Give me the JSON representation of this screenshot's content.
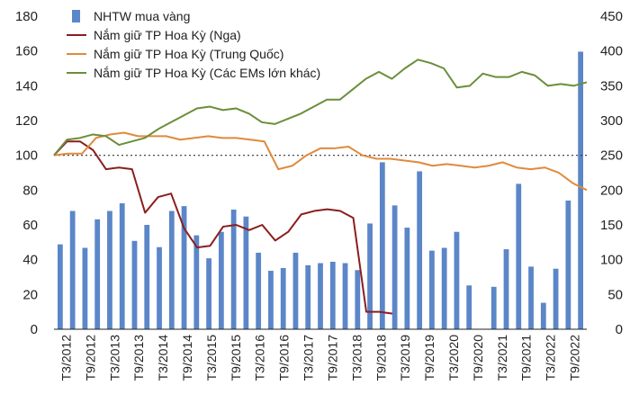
{
  "chart_data": {
    "type": "bar+line",
    "y_left": {
      "min": 0,
      "max": 180,
      "step": 20,
      "ticks": [
        "0",
        "20",
        "40",
        "60",
        "80",
        "100",
        "120",
        "140",
        "160",
        "180"
      ]
    },
    "y_right": {
      "min": 0,
      "max": 450,
      "step": 50,
      "ticks": [
        "0",
        "50",
        "100",
        "150",
        "200",
        "250",
        "300",
        "350",
        "400",
        "450"
      ]
    },
    "x_tick_labels": [
      "T3/2012",
      "T9/2012",
      "T3/2013",
      "T9/2013",
      "T3/2014",
      "T9/2014",
      "T3/2015",
      "T9/2015",
      "T3/2016",
      "T9/2016",
      "T3/2017",
      "T9/2017",
      "T3/2018",
      "T9/2018",
      "T3/2019",
      "T9/2019",
      "T3/2020",
      "T9/2020",
      "T3/2021",
      "T9/2021",
      "T3/2022",
      "T9/2022"
    ],
    "reference_line": {
      "axis": "left",
      "value": 100,
      "style": "dotted"
    },
    "colors": {
      "bars": "#5b86c8",
      "russia": "#8b1e1e",
      "china": "#e08a3c",
      "ems": "#6b8e3a"
    },
    "series": [
      {
        "name": "NHTW mua vàng",
        "type": "bar",
        "axis": "right",
        "color": "#5b86c8",
        "values": [
          122,
          170,
          117,
          158,
          170,
          181,
          127,
          150,
          118,
          170,
          177,
          135,
          102,
          140,
          172,
          162,
          110,
          84,
          88,
          110,
          92,
          95,
          97,
          95,
          85,
          152,
          240,
          178,
          146,
          227,
          113,
          117,
          140,
          63,
          0,
          61,
          115,
          209,
          90,
          38,
          87,
          185,
          399
        ]
      },
      {
        "name": "Nắm giữ TP Hoa Kỳ (Nga)",
        "type": "line",
        "axis": "left",
        "color": "#8b1e1e",
        "values": [
          100,
          108,
          108,
          103,
          92,
          93,
          92,
          67,
          76,
          78,
          58,
          47,
          48,
          59,
          60,
          57,
          60,
          51,
          56,
          66,
          68,
          69,
          68,
          64,
          10,
          10,
          9
        ]
      },
      {
        "name": "Nắm giữ TP Hoa Kỳ (Trung Quốc)",
        "type": "line",
        "axis": "left",
        "color": "#e08a3c",
        "values": [
          100,
          101,
          101,
          110,
          112,
          113,
          111,
          111,
          111,
          109,
          110,
          111,
          110,
          110,
          109,
          108,
          92,
          94,
          100,
          104,
          104,
          105,
          100,
          98,
          98,
          97,
          96,
          94,
          95,
          94,
          93,
          94,
          96,
          93,
          92,
          93,
          90,
          84,
          80
        ]
      },
      {
        "name": "Nắm giữ TP Hoa Kỳ (Các EMs lớn khác)",
        "type": "line",
        "axis": "left",
        "color": "#6b8e3a",
        "values": [
          100,
          109,
          110,
          112,
          111,
          106,
          108,
          110,
          115,
          119,
          123,
          127,
          128,
          126,
          127,
          124,
          119,
          118,
          121,
          124,
          128,
          132,
          132,
          138,
          144,
          148,
          144,
          150,
          155,
          153,
          150,
          139,
          140,
          147,
          145,
          145,
          148,
          146,
          140,
          141,
          140,
          142
        ]
      }
    ]
  }
}
